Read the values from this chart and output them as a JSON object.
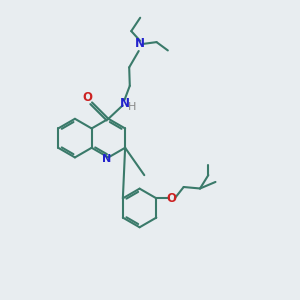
{
  "bg_color": "#e8edf0",
  "bond_color": "#3a7a6a",
  "n_color": "#2222cc",
  "o_color": "#cc2222",
  "h_color": "#888888",
  "lw": 1.5,
  "figsize": [
    3.0,
    3.0
  ],
  "dpi": 100,
  "xlim": [
    0,
    10
  ],
  "ylim": [
    0,
    10
  ]
}
